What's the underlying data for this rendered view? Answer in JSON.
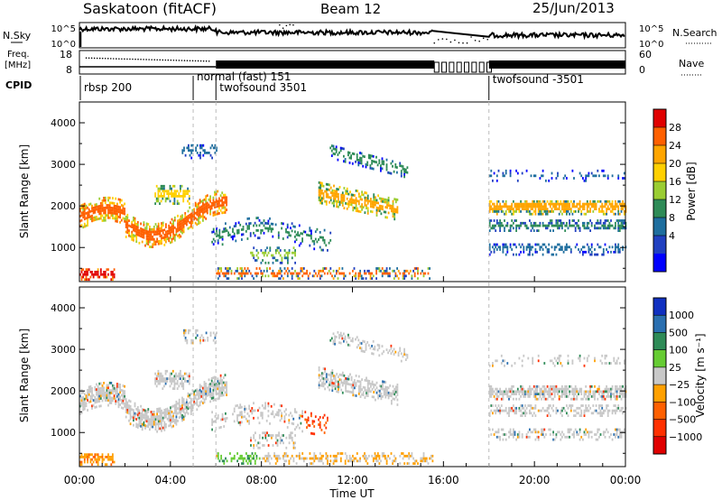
{
  "header": {
    "station": "Saskatoon (fitACF)",
    "beam": "Beam 12",
    "date": "25/Jun/2013"
  },
  "noise_panel": {
    "left_label": "N.Sky",
    "right_label": "N.Search",
    "ticks_left": [
      "10^5",
      "10^0"
    ],
    "ticks_right": [
      "10^5",
      "10^0"
    ]
  },
  "freq_panel": {
    "left_label_line1": "Freq.",
    "left_label_line2": "[MHz]",
    "ticks_left": [
      "18",
      "8"
    ],
    "ticks_right": [
      "60",
      "0"
    ],
    "right_label": "Nave"
  },
  "cpid_panel": {
    "label": "CPID",
    "modes": [
      {
        "name": "rbsp 200",
        "start_hour": 0
      },
      {
        "name": "normal (fast) 151",
        "start_hour": 5.0
      },
      {
        "name": "twofsound 3501",
        "start_hour": 6.0
      },
      {
        "name": "twofsound -3501",
        "start_hour": 18.0
      }
    ]
  },
  "chart_data": [
    {
      "type": "heatmap",
      "ylabel": "Slant Range [km]",
      "yticks": [
        "4000",
        "3000",
        "2000",
        "1000"
      ],
      "ylim": [
        180,
        4500
      ],
      "colorbar_label": "Power [dB]",
      "colorbar_ticks": [
        "28",
        "24",
        "20",
        "16",
        "12",
        "8",
        "4"
      ],
      "colorbar_colors": [
        "#e00000",
        "#ff6000",
        "#ffa500",
        "#ffd000",
        "#9acd32",
        "#2e8b57",
        "#1e6e9e",
        "#2040c0",
        "#0000ff"
      ],
      "xlim": [
        0,
        24
      ]
    },
    {
      "type": "heatmap",
      "ylabel": "Slant Range [km]",
      "yticks": [
        "4000",
        "3000",
        "2000",
        "1000"
      ],
      "ylim": [
        180,
        4500
      ],
      "xlabel": "Time UT",
      "xticks": [
        "00:00",
        "04:00",
        "08:00",
        "12:00",
        "16:00",
        "20:00",
        "00:00"
      ],
      "colorbar_label": "Velocity [m s⁻¹]",
      "colorbar_ticks": [
        "1000",
        "500",
        "100",
        "25",
        "−25",
        "−100",
        "−500",
        "−1000"
      ],
      "colorbar_colors": [
        "#1030c0",
        "#2a6fb0",
        "#2e8b57",
        "#66cc33",
        "#c8c8c8",
        "#ffa000",
        "#ff6000",
        "#ff3000",
        "#e00000"
      ],
      "xlim": [
        0,
        24
      ]
    }
  ],
  "data_gap_hours": [
    15.6,
    18.0
  ]
}
